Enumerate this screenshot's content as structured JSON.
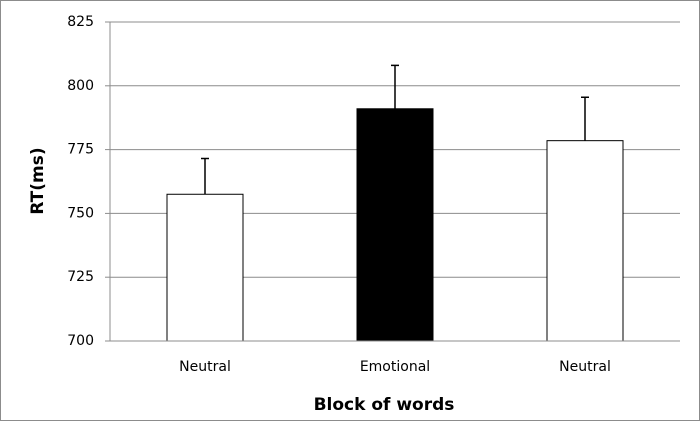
{
  "chart_data": {
    "type": "bar",
    "xlabel": "Block of words",
    "ylabel": "RT(ms)",
    "categories": [
      "Neutral",
      "Emotional",
      "Neutral"
    ],
    "values": [
      757.5,
      791,
      778.5
    ],
    "errors": [
      14,
      17,
      17
    ],
    "colors": [
      "#ffffff",
      "#000000",
      "#ffffff"
    ],
    "ylim": [
      700,
      825
    ],
    "yticks": [
      700,
      725,
      750,
      775,
      800,
      825
    ],
    "grid": true
  }
}
